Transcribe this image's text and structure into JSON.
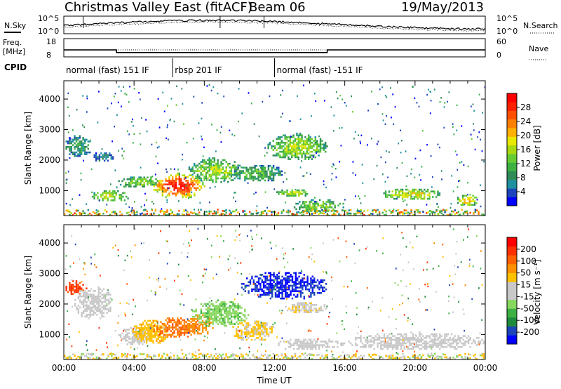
{
  "chart_data": [
    {
      "type": "line",
      "header": {
        "title": "Christmas Valley East (fitACF)",
        "beam": "Beam 06",
        "date": "19/May/2013"
      },
      "panel": "noise",
      "left_label": "N.Sky",
      "right_label": "N.Search",
      "left_ticks": [
        "10^5",
        "10^0"
      ],
      "right_ticks": [
        "10^5",
        "10^0"
      ]
    },
    {
      "type": "line",
      "panel": "frequency",
      "left_label_lines": [
        "Freq.",
        "[MHz]"
      ],
      "right_label": "Nave",
      "left_ticks": [
        "18",
        "8"
      ],
      "right_ticks": [
        "60",
        "0"
      ],
      "x": [
        0,
        3,
        3,
        15,
        15,
        24
      ],
      "frequency_mhz": [
        11.8,
        11.8,
        10.4,
        10.4,
        11.8,
        11.8
      ],
      "nave_dotted": 24
    },
    {
      "type": "table",
      "panel": "cpid",
      "label": "CPID",
      "segments": [
        {
          "label": "normal (fast) 151 IF",
          "start_h": 0,
          "end_h": 6.2
        },
        {
          "label": "rbsp 201 IF",
          "start_h": 6.2,
          "end_h": 12.0
        },
        {
          "label": "normal (fast) -151 IF",
          "start_h": 12.0,
          "end_h": 24
        }
      ]
    },
    {
      "type": "heatmap",
      "panel": "power",
      "ylabel": "Slant Range [km]",
      "y_ticks": [
        "1000",
        "2000",
        "3000",
        "4000"
      ],
      "ylim": [
        180,
        4600
      ],
      "xlim": [
        0,
        24
      ],
      "colorbar": {
        "label": "Power [dB]",
        "ticks": [
          "4",
          "8",
          "12",
          "16",
          "20",
          "24",
          "28"
        ],
        "colors": [
          "#0000ff",
          "#1c45ba",
          "#1e90a0",
          "#2e8b57",
          "#3cb043",
          "#66cc33",
          "#a8d810",
          "#e8e800",
          "#ffb000",
          "#ff8000",
          "#ff5000",
          "#ff2000",
          "#ff0000"
        ],
        "range": [
          0,
          30
        ]
      },
      "blobs": [
        {
          "t0": 0.0,
          "t1": 1.6,
          "r0": 2100,
          "r1": 2850,
          "v": 8
        },
        {
          "t0": 1.6,
          "t1": 2.8,
          "r0": 1950,
          "r1": 2300,
          "v": 6
        },
        {
          "t0": 1.5,
          "t1": 3.8,
          "r0": 650,
          "r1": 1050,
          "v": 14
        },
        {
          "t0": 3.0,
          "t1": 5.5,
          "r0": 1100,
          "r1": 1500,
          "v": 12
        },
        {
          "t0": 5.0,
          "t1": 8.0,
          "r0": 750,
          "r1": 1600,
          "v": 24
        },
        {
          "t0": 7.0,
          "t1": 10.2,
          "r0": 1250,
          "r1": 2100,
          "v": 13
        },
        {
          "t0": 9.5,
          "t1": 12.5,
          "r0": 1300,
          "r1": 1900,
          "v": 10
        },
        {
          "t0": 11.5,
          "t1": 15.0,
          "r0": 2000,
          "r1": 2900,
          "v": 13
        },
        {
          "t0": 12.0,
          "t1": 14.0,
          "r0": 800,
          "r1": 1100,
          "v": 14
        },
        {
          "t0": 13.0,
          "t1": 16.0,
          "r0": 300,
          "r1": 750,
          "v": 12
        },
        {
          "t0": 18.0,
          "t1": 21.5,
          "r0": 700,
          "r1": 1100,
          "v": 15
        },
        {
          "t0": 22.3,
          "t1": 23.6,
          "r0": 500,
          "r1": 900,
          "v": 17
        }
      ]
    },
    {
      "type": "heatmap",
      "panel": "velocity",
      "xlabel": "Time UT",
      "ylabel": "Slant Range [km]",
      "x_ticks": [
        "00:00",
        "04:00",
        "08:00",
        "12:00",
        "16:00",
        "20:00",
        "00:00"
      ],
      "y_ticks": [
        "1000",
        "2000",
        "3000",
        "4000"
      ],
      "ylim": [
        180,
        4600
      ],
      "xlim": [
        0,
        24
      ],
      "colorbar": {
        "label": "Velocity [m s⁻¹]",
        "ticks": [
          "200",
          "100",
          "50",
          "15",
          "-15",
          "-50",
          "-100",
          "-200"
        ],
        "colors": [
          "#0000ff",
          "#1c45ba",
          "#1e8a3c",
          "#3cb043",
          "#88d860",
          "#c8c8c8",
          "#c8c8c8",
          "#ffc000",
          "#ff9000",
          "#ff6000",
          "#ff3000",
          "#ff0000"
        ],
        "range": [
          -250,
          250
        ]
      },
      "blobs": [
        {
          "t0": 0.0,
          "t1": 1.3,
          "r0": 2300,
          "r1": 2800,
          "v": 180
        },
        {
          "t0": 0.5,
          "t1": 2.8,
          "r0": 1500,
          "r1": 2600,
          "v": 0
        },
        {
          "t0": 3.0,
          "t1": 5.0,
          "r0": 650,
          "r1": 1300,
          "v": 5
        },
        {
          "t0": 3.8,
          "t1": 6.0,
          "r0": 700,
          "r1": 1500,
          "v": 65
        },
        {
          "t0": 5.0,
          "t1": 7.8,
          "r0": 900,
          "r1": 1600,
          "v": 130
        },
        {
          "t0": 7.0,
          "t1": 8.5,
          "r0": 1000,
          "r1": 1700,
          "v": 110
        },
        {
          "t0": 7.2,
          "t1": 10.5,
          "r0": 1250,
          "r1": 2150,
          "v": -70
        },
        {
          "t0": 9.5,
          "t1": 12.0,
          "r0": 800,
          "r1": 1500,
          "v": 45
        },
        {
          "t0": 10.0,
          "t1": 15.0,
          "r0": 2150,
          "r1": 3100,
          "v": -210
        },
        {
          "t0": 12.0,
          "t1": 16.0,
          "r0": 500,
          "r1": 900,
          "v": 0
        },
        {
          "t0": 16.0,
          "t1": 24.0,
          "r0": 500,
          "r1": 1100,
          "v": 0
        },
        {
          "t0": 12.5,
          "t1": 15.0,
          "r0": 1700,
          "r1": 2100,
          "v": 30
        }
      ]
    }
  ]
}
